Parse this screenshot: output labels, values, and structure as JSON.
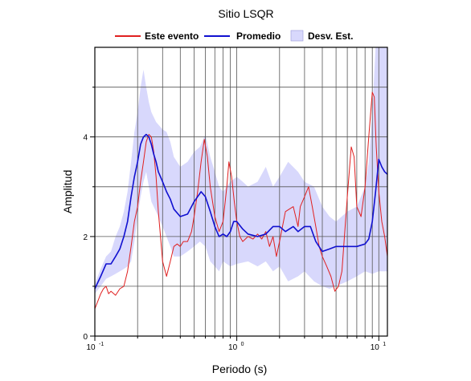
{
  "chart_data": {
    "type": "line",
    "title": "Sitio LSQR",
    "xlabel": "Periodo (s)",
    "ylabel": "Amplitud",
    "xscale": "log",
    "xlim": [
      0.1,
      11.5
    ],
    "ylim": [
      0,
      5.8
    ],
    "grid": true,
    "legend_position": "top",
    "x_ticks": [
      {
        "base": "10",
        "exp": "-1",
        "value": 0.1
      },
      {
        "base": "10",
        "exp": "0",
        "value": 1
      },
      {
        "base": "10",
        "exp": "1",
        "value": 10
      }
    ],
    "y_ticks": [
      "0",
      "2",
      "4"
    ],
    "y_tick_values": [
      0,
      2,
      4
    ],
    "legend": [
      {
        "label": "Este evento",
        "kind": "line",
        "color": "#e02020"
      },
      {
        "label": "Promedio",
        "kind": "line",
        "color": "#1010d0"
      },
      {
        "label": "Desv. Est.",
        "kind": "band",
        "color": "#d8d8fc"
      }
    ],
    "series": [
      {
        "name": "Este evento",
        "color": "#e02020",
        "points": [
          [
            0.1,
            0.55
          ],
          [
            0.105,
            0.7
          ],
          [
            0.11,
            0.85
          ],
          [
            0.115,
            0.95
          ],
          [
            0.12,
            1.0
          ],
          [
            0.125,
            0.85
          ],
          [
            0.13,
            0.9
          ],
          [
            0.14,
            0.82
          ],
          [
            0.15,
            0.95
          ],
          [
            0.16,
            1.0
          ],
          [
            0.17,
            1.3
          ],
          [
            0.18,
            1.8
          ],
          [
            0.19,
            2.3
          ],
          [
            0.2,
            2.6
          ],
          [
            0.21,
            3.1
          ],
          [
            0.22,
            3.5
          ],
          [
            0.23,
            3.9
          ],
          [
            0.24,
            4.05
          ],
          [
            0.25,
            4.0
          ],
          [
            0.26,
            3.7
          ],
          [
            0.27,
            3.2
          ],
          [
            0.28,
            2.5
          ],
          [
            0.29,
            2.0
          ],
          [
            0.3,
            1.5
          ],
          [
            0.32,
            1.2
          ],
          [
            0.34,
            1.5
          ],
          [
            0.36,
            1.8
          ],
          [
            0.38,
            1.85
          ],
          [
            0.4,
            1.8
          ],
          [
            0.42,
            1.9
          ],
          [
            0.45,
            1.9
          ],
          [
            0.48,
            2.1
          ],
          [
            0.5,
            2.4
          ],
          [
            0.53,
            2.9
          ],
          [
            0.56,
            3.5
          ],
          [
            0.59,
            3.95
          ],
          [
            0.62,
            3.6
          ],
          [
            0.65,
            3.0
          ],
          [
            0.7,
            2.4
          ],
          [
            0.75,
            2.1
          ],
          [
            0.8,
            2.3
          ],
          [
            0.85,
            3.0
          ],
          [
            0.88,
            3.5
          ],
          [
            0.92,
            3.2
          ],
          [
            0.96,
            2.7
          ],
          [
            1.0,
            2.3
          ],
          [
            1.05,
            2.0
          ],
          [
            1.1,
            1.9
          ],
          [
            1.2,
            2.0
          ],
          [
            1.3,
            1.95
          ],
          [
            1.4,
            2.05
          ],
          [
            1.5,
            1.95
          ],
          [
            1.6,
            2.1
          ],
          [
            1.7,
            1.8
          ],
          [
            1.8,
            2.0
          ],
          [
            1.9,
            1.6
          ],
          [
            2.0,
            1.9
          ],
          [
            2.2,
            2.5
          ],
          [
            2.5,
            2.6
          ],
          [
            2.7,
            2.2
          ],
          [
            2.8,
            2.6
          ],
          [
            3.0,
            2.8
          ],
          [
            3.2,
            3.0
          ],
          [
            3.4,
            2.6
          ],
          [
            3.6,
            2.2
          ],
          [
            3.8,
            1.8
          ],
          [
            4.0,
            1.6
          ],
          [
            4.3,
            1.4
          ],
          [
            4.6,
            1.2
          ],
          [
            4.9,
            0.9
          ],
          [
            5.2,
            1.0
          ],
          [
            5.5,
            1.3
          ],
          [
            6.0,
            2.8
          ],
          [
            6.4,
            3.8
          ],
          [
            6.7,
            3.6
          ],
          [
            7.0,
            2.6
          ],
          [
            7.5,
            2.4
          ],
          [
            8.0,
            3.0
          ],
          [
            8.5,
            4.0
          ],
          [
            9.0,
            4.9
          ],
          [
            9.3,
            4.8
          ],
          [
            9.6,
            3.8
          ],
          [
            10.0,
            2.9
          ],
          [
            10.5,
            2.3
          ],
          [
            11.0,
            2.0
          ],
          [
            11.5,
            1.6
          ]
        ]
      },
      {
        "name": "Promedio",
        "color": "#1010d0",
        "points": [
          [
            0.1,
            0.95
          ],
          [
            0.11,
            1.2
          ],
          [
            0.12,
            1.45
          ],
          [
            0.13,
            1.45
          ],
          [
            0.14,
            1.6
          ],
          [
            0.15,
            1.75
          ],
          [
            0.16,
            2.0
          ],
          [
            0.17,
            2.3
          ],
          [
            0.18,
            2.8
          ],
          [
            0.19,
            3.2
          ],
          [
            0.2,
            3.5
          ],
          [
            0.21,
            3.85
          ],
          [
            0.22,
            4.0
          ],
          [
            0.23,
            4.05
          ],
          [
            0.24,
            4.0
          ],
          [
            0.25,
            3.85
          ],
          [
            0.26,
            3.65
          ],
          [
            0.27,
            3.5
          ],
          [
            0.28,
            3.3
          ],
          [
            0.3,
            3.1
          ],
          [
            0.32,
            2.9
          ],
          [
            0.34,
            2.75
          ],
          [
            0.36,
            2.55
          ],
          [
            0.4,
            2.4
          ],
          [
            0.45,
            2.45
          ],
          [
            0.5,
            2.7
          ],
          [
            0.53,
            2.8
          ],
          [
            0.56,
            2.9
          ],
          [
            0.6,
            2.8
          ],
          [
            0.65,
            2.5
          ],
          [
            0.7,
            2.2
          ],
          [
            0.75,
            2.0
          ],
          [
            0.8,
            2.05
          ],
          [
            0.85,
            2.0
          ],
          [
            0.9,
            2.1
          ],
          [
            0.95,
            2.3
          ],
          [
            1.0,
            2.3
          ],
          [
            1.1,
            2.15
          ],
          [
            1.2,
            2.05
          ],
          [
            1.4,
            2.0
          ],
          [
            1.6,
            2.05
          ],
          [
            1.8,
            2.2
          ],
          [
            2.0,
            2.2
          ],
          [
            2.2,
            2.1
          ],
          [
            2.5,
            2.2
          ],
          [
            2.7,
            2.1
          ],
          [
            3.0,
            2.2
          ],
          [
            3.3,
            2.2
          ],
          [
            3.6,
            1.9
          ],
          [
            4.0,
            1.7
          ],
          [
            4.5,
            1.75
          ],
          [
            5.0,
            1.8
          ],
          [
            6.0,
            1.8
          ],
          [
            7.0,
            1.8
          ],
          [
            8.0,
            1.85
          ],
          [
            8.5,
            1.95
          ],
          [
            9.0,
            2.3
          ],
          [
            9.5,
            2.9
          ],
          [
            10.0,
            3.55
          ],
          [
            10.5,
            3.4
          ],
          [
            11.0,
            3.3
          ],
          [
            11.5,
            3.25
          ]
        ]
      }
    ],
    "band": {
      "name": "Desv. Est.",
      "color": "#d8d8fc",
      "upper": [
        [
          0.1,
          1.05
        ],
        [
          0.11,
          1.35
        ],
        [
          0.12,
          1.6
        ],
        [
          0.13,
          1.7
        ],
        [
          0.14,
          2.0
        ],
        [
          0.15,
          2.2
        ],
        [
          0.16,
          2.5
        ],
        [
          0.17,
          2.9
        ],
        [
          0.18,
          3.5
        ],
        [
          0.19,
          4.1
        ],
        [
          0.2,
          4.5
        ],
        [
          0.21,
          5.0
        ],
        [
          0.22,
          5.35
        ],
        [
          0.23,
          5.0
        ],
        [
          0.24,
          4.7
        ],
        [
          0.25,
          4.5
        ],
        [
          0.27,
          4.3
        ],
        [
          0.3,
          4.15
        ],
        [
          0.32,
          4.1
        ],
        [
          0.34,
          3.9
        ],
        [
          0.36,
          3.6
        ],
        [
          0.4,
          3.4
        ],
        [
          0.45,
          3.5
        ],
        [
          0.5,
          3.7
        ],
        [
          0.55,
          3.8
        ],
        [
          0.6,
          4.05
        ],
        [
          0.65,
          3.6
        ],
        [
          0.7,
          3.3
        ],
        [
          0.75,
          3.0
        ],
        [
          0.8,
          2.9
        ],
        [
          0.9,
          3.1
        ],
        [
          1.0,
          3.2
        ],
        [
          1.1,
          3.1
        ],
        [
          1.2,
          3.0
        ],
        [
          1.4,
          3.1
        ],
        [
          1.6,
          3.4
        ],
        [
          1.8,
          3.0
        ],
        [
          2.0,
          3.2
        ],
        [
          2.3,
          3.5
        ],
        [
          2.7,
          3.3
        ],
        [
          3.0,
          3.1
        ],
        [
          3.5,
          3.0
        ],
        [
          4.0,
          2.6
        ],
        [
          4.5,
          2.4
        ],
        [
          5.0,
          2.3
        ],
        [
          6.0,
          2.5
        ],
        [
          7.0,
          2.6
        ],
        [
          8.0,
          3.0
        ],
        [
          8.5,
          3.5
        ],
        [
          9.0,
          4.5
        ],
        [
          9.5,
          5.8
        ],
        [
          10.5,
          5.8
        ],
        [
          11.5,
          5.8
        ]
      ],
      "lower": [
        [
          0.1,
          0.85
        ],
        [
          0.11,
          1.0
        ],
        [
          0.12,
          1.15
        ],
        [
          0.13,
          1.2
        ],
        [
          0.14,
          1.25
        ],
        [
          0.15,
          1.3
        ],
        [
          0.16,
          1.35
        ],
        [
          0.17,
          1.4
        ],
        [
          0.18,
          1.5
        ],
        [
          0.19,
          1.9
        ],
        [
          0.2,
          2.4
        ],
        [
          0.21,
          2.8
        ],
        [
          0.22,
          3.1
        ],
        [
          0.23,
          3.3
        ],
        [
          0.24,
          3.0
        ],
        [
          0.25,
          2.7
        ],
        [
          0.27,
          2.5
        ],
        [
          0.3,
          2.2
        ],
        [
          0.34,
          1.8
        ],
        [
          0.36,
          1.6
        ],
        [
          0.4,
          1.6
        ],
        [
          0.45,
          1.7
        ],
        [
          0.5,
          1.8
        ],
        [
          0.55,
          1.9
        ],
        [
          0.6,
          1.8
        ],
        [
          0.65,
          1.5
        ],
        [
          0.7,
          1.4
        ],
        [
          0.75,
          1.3
        ],
        [
          0.8,
          1.5
        ],
        [
          0.9,
          1.4
        ],
        [
          1.0,
          1.45
        ],
        [
          1.2,
          1.5
        ],
        [
          1.4,
          1.4
        ],
        [
          1.6,
          1.5
        ],
        [
          1.8,
          1.3
        ],
        [
          2.0,
          1.4
        ],
        [
          2.3,
          1.1
        ],
        [
          2.7,
          1.2
        ],
        [
          3.0,
          1.3
        ],
        [
          3.5,
          1.1
        ],
        [
          4.0,
          1.0
        ],
        [
          4.5,
          0.95
        ],
        [
          5.0,
          1.0
        ],
        [
          6.0,
          1.1
        ],
        [
          7.0,
          1.2
        ],
        [
          8.0,
          1.3
        ],
        [
          9.0,
          1.25
        ],
        [
          10.0,
          1.3
        ],
        [
          11.5,
          1.3
        ]
      ]
    }
  }
}
